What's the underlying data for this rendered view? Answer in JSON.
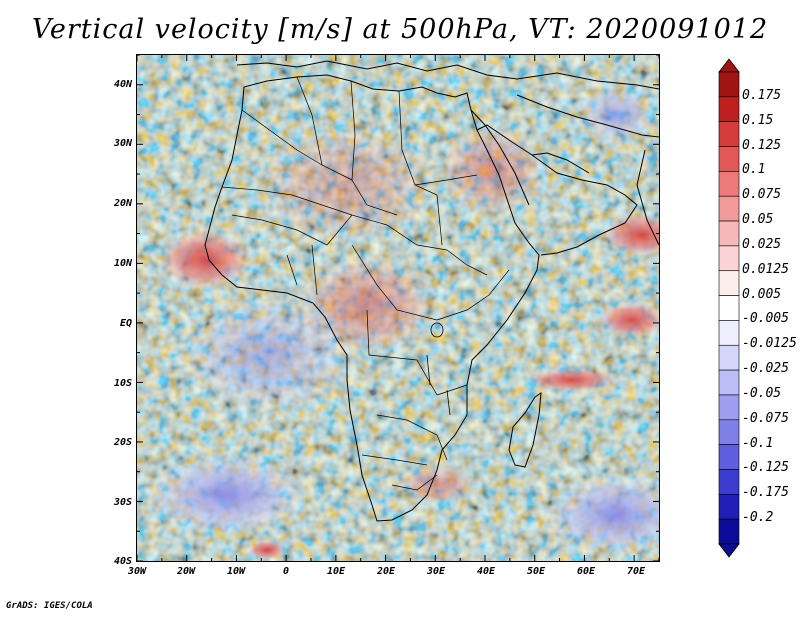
{
  "title": "Vertical velocity [m/s] at 500hPa, VT: 2020091012",
  "credit": "GrADS: IGES/COLA",
  "map": {
    "lat_labels": [
      "40N",
      "30N",
      "20N",
      "10N",
      "EQ",
      "10S",
      "20S",
      "30S",
      "40S"
    ],
    "lon_labels": [
      "30W",
      "20W",
      "10W",
      "0",
      "10E",
      "20E",
      "30E",
      "40E",
      "50E",
      "60E",
      "70E"
    ],
    "lat_range": [
      -40,
      45
    ],
    "lon_range": [
      -30,
      75
    ]
  },
  "colorbar": {
    "labels": [
      "0.175",
      "0.15",
      "0.125",
      "0.1",
      "0.075",
      "0.05",
      "0.025",
      "0.0125",
      "0.005",
      "-0.005",
      "-0.0125",
      "-0.025",
      "-0.05",
      "-0.075",
      "-0.1",
      "-0.125",
      "-0.175",
      "-0.2"
    ],
    "colors": [
      "#a01414",
      "#be2020",
      "#d43c3c",
      "#e25858",
      "#ec7a7a",
      "#f29a9a",
      "#f6b8b8",
      "#fad4d4",
      "#fdeeee",
      "#ffffff",
      "#eeeefd",
      "#d6d6fa",
      "#bcbcf6",
      "#9e9ef0",
      "#7f7fe8",
      "#5e5ede",
      "#3c3cd0",
      "#2020b8",
      "#0c0c9a"
    ]
  }
}
